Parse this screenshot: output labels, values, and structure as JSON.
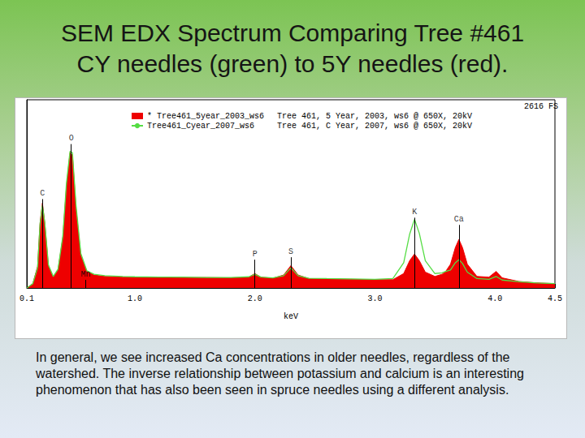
{
  "title": "SEM EDX Spectrum Comparing Tree #461\nCY needles (green) to 5Y needles (red).",
  "caption": "In general, we see increased Ca concentrations in older needles, regardless of the watershed. The inverse relationship between potassium and calcium is an interesting phenomenon that has also been seen in spruce needles using a different analysis.",
  "chart_data": {
    "type": "line",
    "xlabel": "keV",
    "corner_text": "2616 FS",
    "xlim": [
      0.1,
      4.5
    ],
    "xticks": [
      0.1,
      {
        "value": 1,
        "label": "1.0"
      },
      {
        "value": 2,
        "label": "2.0"
      },
      {
        "value": 3,
        "label": "3.0"
      },
      {
        "value": 4,
        "label": "4.0"
      },
      4.5
    ],
    "ylim": [
      0,
      2616
    ],
    "tick_labels": "x",
    "grid": false,
    "legend": "upper left",
    "x": [
      0.1,
      0.15,
      0.19,
      0.21,
      0.23,
      0.25,
      0.28,
      0.32,
      0.36,
      0.4,
      0.43,
      0.46,
      0.48,
      0.51,
      0.55,
      0.6,
      0.66,
      0.75,
      0.9,
      1.0,
      1.2,
      1.4,
      1.6,
      1.8,
      1.95,
      2.0,
      2.05,
      2.15,
      2.24,
      2.3,
      2.36,
      2.45,
      2.6,
      2.8,
      3.0,
      3.15,
      3.24,
      3.29,
      3.33,
      3.37,
      3.42,
      3.5,
      3.56,
      3.59,
      3.63,
      3.67,
      3.7,
      3.73,
      3.77,
      3.85,
      3.95,
      4.01,
      4.06,
      4.2,
      4.35,
      4.5
    ],
    "series": [
      {
        "name": "* Tree461_5year_2003_ws6",
        "description": "Tree 461, 5 Year, 2003, ws6 @ 650X, 20kV",
        "type": "area",
        "color": "#ee0000",
        "values": [
          0,
          60,
          300,
          900,
          1180,
          900,
          300,
          150,
          250,
          700,
          1400,
          1880,
          1850,
          1100,
          450,
          230,
          180,
          160,
          150,
          150,
          150,
          145,
          145,
          140,
          150,
          200,
          150,
          135,
          180,
          310,
          180,
          130,
          125,
          120,
          115,
          115,
          200,
          380,
          472,
          380,
          220,
          160,
          190,
          230,
          330,
          560,
          674,
          560,
          330,
          160,
          150,
          230,
          140,
          90,
          70,
          60
        ]
      },
      {
        "name": "Tree461_Cyear_2007_ws6",
        "description": "Tree 461, C Year, 2007, ws6 @ 650X, 20kV",
        "type": "line",
        "color": "#55dd44",
        "values": [
          0,
          60,
          280,
          880,
          1150,
          900,
          320,
          160,
          260,
          720,
          1450,
          1900,
          1880,
          1150,
          480,
          240,
          190,
          170,
          160,
          155,
          150,
          150,
          145,
          145,
          155,
          190,
          150,
          140,
          170,
          280,
          170,
          135,
          130,
          125,
          120,
          130,
          350,
          750,
          954,
          760,
          380,
          200,
          210,
          230,
          250,
          350,
          393,
          340,
          220,
          130,
          120,
          160,
          110,
          85,
          70,
          60
        ]
      }
    ],
    "peaks": [
      {
        "label": "C",
        "x": 0.23,
        "y": 1235
      },
      {
        "label": "O",
        "x": 0.47,
        "y": 2000
      },
      {
        "label": "Mn",
        "x": 0.59,
        "y": 112
      },
      {
        "label": "P",
        "x": 2.0,
        "y": 393
      },
      {
        "label": "S",
        "x": 2.3,
        "y": 427
      },
      {
        "label": "K",
        "x": 3.33,
        "y": 977
      },
      {
        "label": "Ca",
        "x": 3.7,
        "y": 876
      }
    ]
  }
}
